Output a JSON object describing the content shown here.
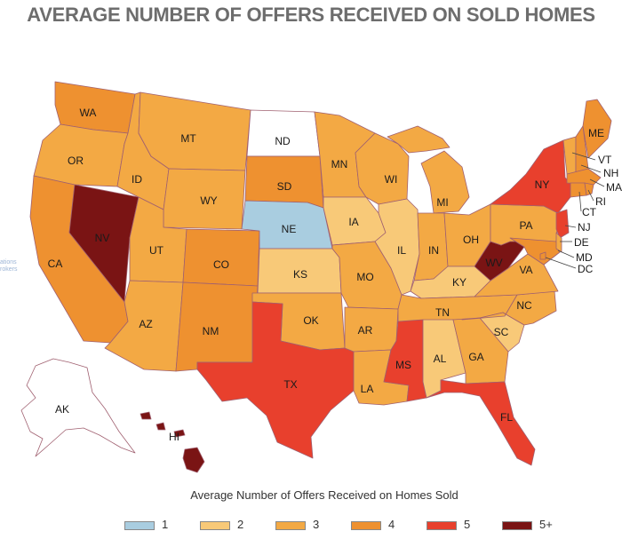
{
  "title": "AVERAGE NUMBER OF OFFERS RECEIVED ON SOLD HOMES",
  "map_subtitle": "Average Number of Offers Received on Homes Sold",
  "watermark": [
    "ations",
    "rokers"
  ],
  "colors": {
    "c1": "#a9cde0",
    "c2": "#f8c978",
    "c3": "#f3a944",
    "c4": "#ee9130",
    "c5": "#e8402d",
    "c6": "#7a1414",
    "none": "#ffffff",
    "border": "#a06070"
  },
  "legend": [
    {
      "label": "1",
      "color": "#a9cde0"
    },
    {
      "label": "2",
      "color": "#f8c978"
    },
    {
      "label": "3",
      "color": "#f3a944"
    },
    {
      "label": "4",
      "color": "#ee9130"
    },
    {
      "label": "5",
      "color": "#e8402d"
    },
    {
      "label": "5+",
      "color": "#7a1414"
    }
  ],
  "states": {
    "WA": {
      "label": "WA",
      "category": "4"
    },
    "OR": {
      "label": "OR",
      "category": "3"
    },
    "CA": {
      "label": "CA",
      "category": "4"
    },
    "NV": {
      "label": "NV",
      "category": "5+"
    },
    "ID": {
      "label": "ID",
      "category": "3"
    },
    "MT": {
      "label": "MT",
      "category": "3"
    },
    "WY": {
      "label": "WY",
      "category": "3"
    },
    "UT": {
      "label": "UT",
      "category": "3"
    },
    "AZ": {
      "label": "AZ",
      "category": "3"
    },
    "CO": {
      "label": "CO",
      "category": "4"
    },
    "NM": {
      "label": "NM",
      "category": "4"
    },
    "ND": {
      "label": "ND",
      "category": "none"
    },
    "SD": {
      "label": "SD",
      "category": "4"
    },
    "NE": {
      "label": "NE",
      "category": "1"
    },
    "KS": {
      "label": "KS",
      "category": "2"
    },
    "OK": {
      "label": "OK",
      "category": "3"
    },
    "TX": {
      "label": "TX",
      "category": "5"
    },
    "MN": {
      "label": "MN",
      "category": "3"
    },
    "IA": {
      "label": "IA",
      "category": "2"
    },
    "MO": {
      "label": "MO",
      "category": "3"
    },
    "AR": {
      "label": "AR",
      "category": "3"
    },
    "LA": {
      "label": "LA",
      "category": "3"
    },
    "WI": {
      "label": "WI",
      "category": "3"
    },
    "IL": {
      "label": "IL",
      "category": "2"
    },
    "MI": {
      "label": "MI",
      "category": "3"
    },
    "IN": {
      "label": "IN",
      "category": "3"
    },
    "OH": {
      "label": "OH",
      "category": "3"
    },
    "KY": {
      "label": "KY",
      "category": "2"
    },
    "TN": {
      "label": "TN",
      "category": "3"
    },
    "MS": {
      "label": "MS",
      "category": "5"
    },
    "AL": {
      "label": "AL",
      "category": "2"
    },
    "GA": {
      "label": "GA",
      "category": "3"
    },
    "FL": {
      "label": "FL",
      "category": "5"
    },
    "SC": {
      "label": "SC",
      "category": "2"
    },
    "NC": {
      "label": "NC",
      "category": "3"
    },
    "VA": {
      "label": "VA",
      "category": "3"
    },
    "WV": {
      "label": "WV",
      "category": "5+"
    },
    "PA": {
      "label": "PA",
      "category": "3"
    },
    "NY": {
      "label": "NY",
      "category": "5"
    },
    "ME": {
      "label": "ME",
      "category": "4"
    },
    "VT": {
      "label": "VT",
      "category": "3"
    },
    "NH": {
      "label": "NH",
      "category": "4"
    },
    "MA": {
      "label": "MA",
      "category": "4"
    },
    "RI": {
      "label": "RI",
      "category": "4"
    },
    "CT": {
      "label": "CT",
      "category": "4"
    },
    "NJ": {
      "label": "NJ",
      "category": "5"
    },
    "DE": {
      "label": "DE",
      "category": "3"
    },
    "MD": {
      "label": "MD",
      "category": "4"
    },
    "DC": {
      "label": "DC",
      "category": "4"
    },
    "AK": {
      "label": "AK",
      "category": "none"
    },
    "HI": {
      "label": "HI",
      "category": "5+"
    }
  }
}
